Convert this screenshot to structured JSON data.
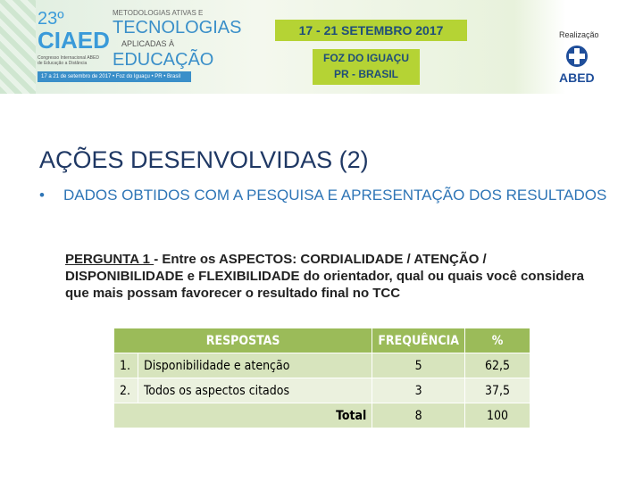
{
  "banner": {
    "edition": "23º",
    "event": "CIAED",
    "event_subtitle": "Congresso Internacional ABED de Educação a Distância",
    "theme_top": "METODOLOGIAS ATIVAS E",
    "theme_main": "TECNOLOGIAS",
    "theme_mid": "APLICADAS À",
    "theme_bottom": "EDUCAÇÃO",
    "footer": "17 a 21 de setembro de 2017 • Foz do Iguaçu • PR • Brasil",
    "dates": "17 - 21 SETEMBRO 2017",
    "city": "FOZ DO IGUAÇU",
    "state": "PR - BRASIL",
    "organizer_label": "Realização",
    "organizer": "ABED"
  },
  "slide": {
    "title": "AÇÕES DESENVOLVIDAS (2)",
    "bullet": "DADOS OBTIDOS COM A PESQUISA E APRESENTAÇÃO DOS RESULTADOS",
    "question_label": "PERGUNTA 1 ",
    "question_text": "- Entre os ASPECTOS: CORDIALIDADE / ATENÇÃO / DISPONIBILIDADE e FLEXIBILIDADE do orientador, qual ou quais você considera que mais possam favorecer o resultado final no TCC"
  },
  "table": {
    "header": [
      "RESPOSTAS",
      "FREQUÊNCIA",
      "%"
    ],
    "rows": [
      [
        "1.",
        "Disponibilidade e atenção",
        "5",
        "62,5"
      ],
      [
        "2.",
        "Todos os aspectos citados",
        "3",
        "37,5"
      ]
    ],
    "total": [
      "Total",
      "8",
      "100"
    ]
  }
}
